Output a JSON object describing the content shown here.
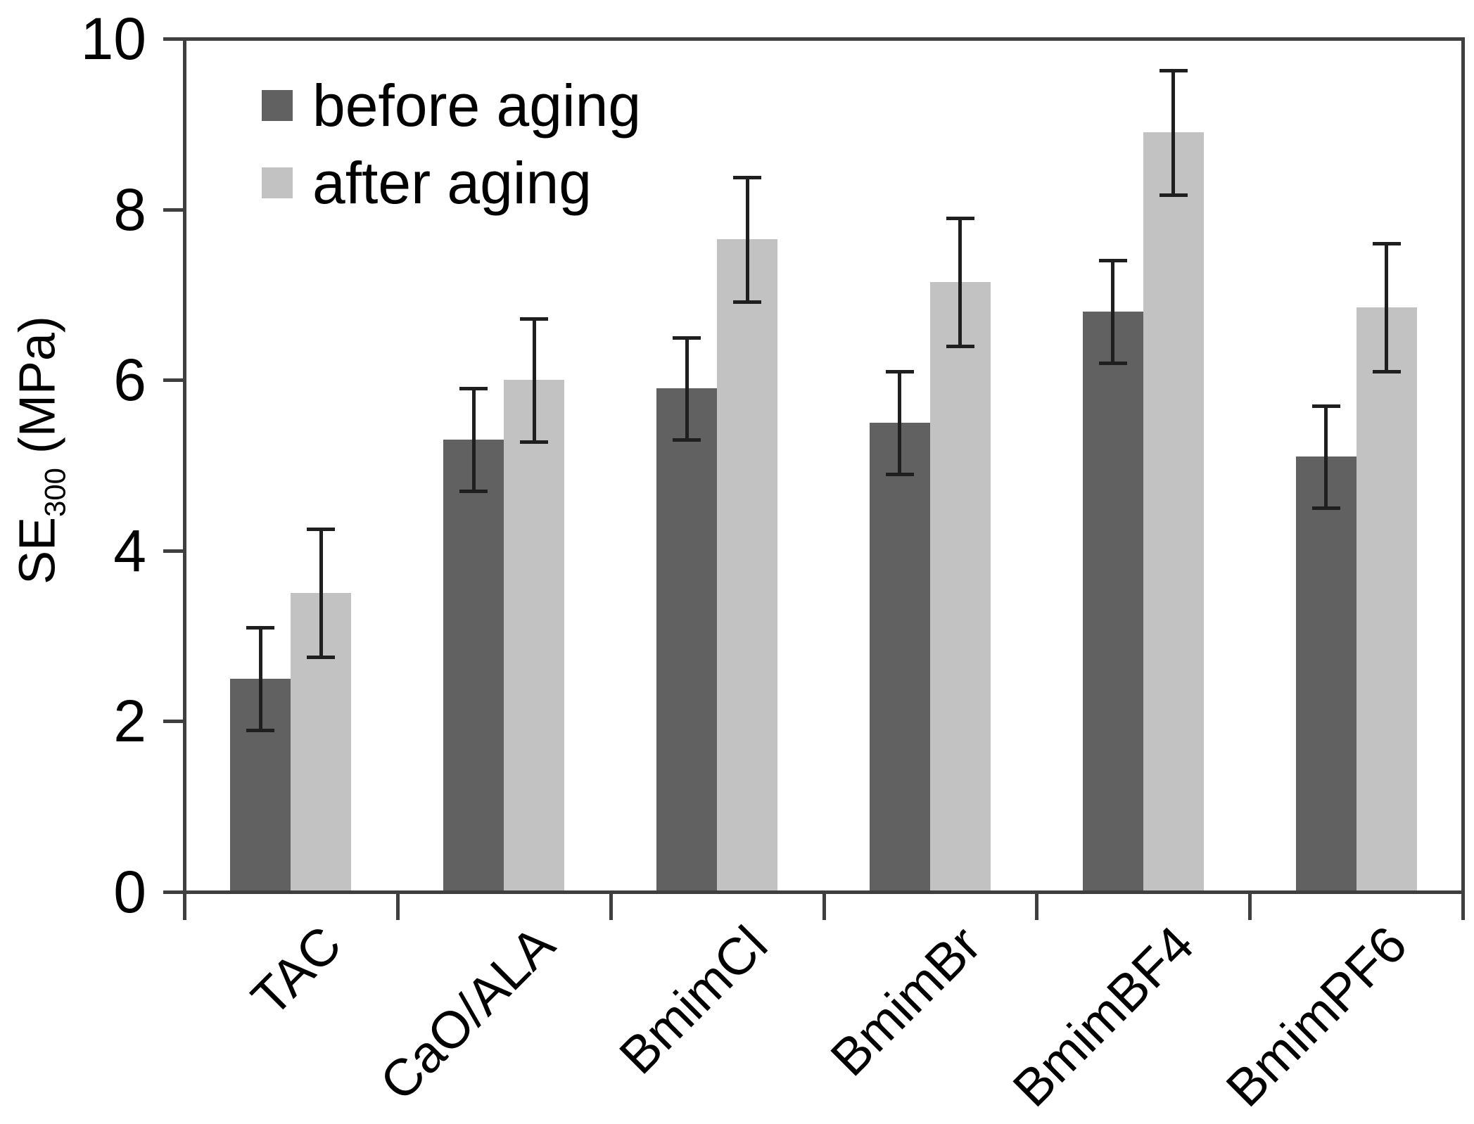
{
  "chart_data": {
    "type": "bar",
    "title": "",
    "categories": [
      "TAC",
      "CaO/ALA",
      "BmimCl",
      "BmimBr",
      "BmimBF4",
      "BmimPF6"
    ],
    "series": [
      {
        "name": "before aging",
        "color": "#616161",
        "values": [
          2.5,
          5.3,
          5.9,
          5.5,
          6.8,
          5.1
        ],
        "errors": [
          0.6,
          0.6,
          0.6,
          0.6,
          0.6,
          0.6
        ]
      },
      {
        "name": "after aging",
        "color": "#c2c2c2",
        "values": [
          3.5,
          6.0,
          7.65,
          7.15,
          8.9,
          6.85
        ],
        "errors": [
          0.75,
          0.72,
          0.73,
          0.75,
          0.73,
          0.75
        ]
      }
    ],
    "ylabel": {
      "prefix": "SE",
      "subscript": "300",
      "suffix": " (MPa)"
    },
    "xlabel": "",
    "yticks": [
      0,
      2,
      4,
      6,
      8,
      10
    ],
    "ylim": [
      0,
      10
    ],
    "grid": false,
    "error_bars": true,
    "legend": {
      "position": "top-left-inside"
    },
    "colors": {
      "axis": "#3f3f3f",
      "error_bar": "#1f1f1f",
      "text": "#000000",
      "background": "#ffffff"
    }
  }
}
